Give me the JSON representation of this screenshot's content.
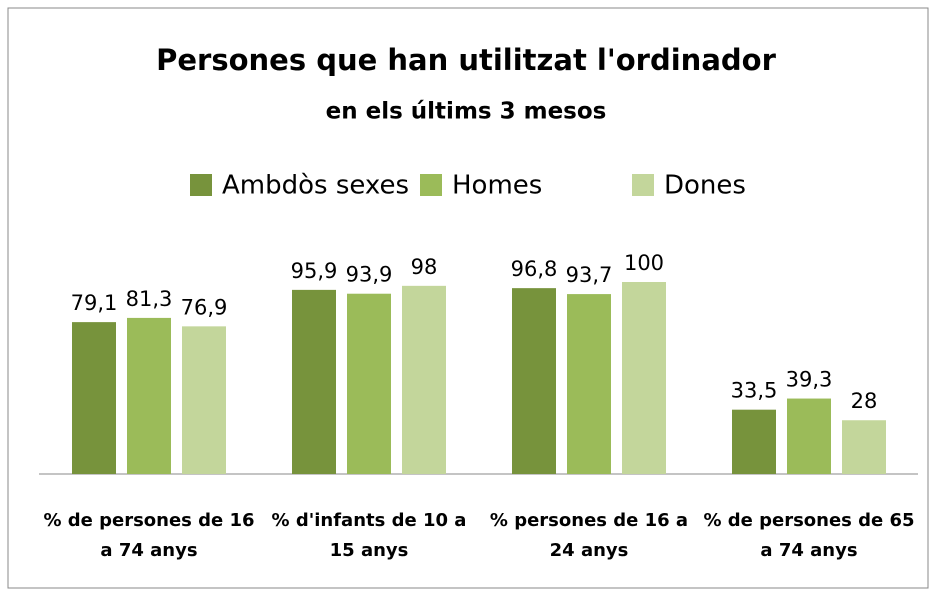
{
  "chart_data": {
    "type": "bar",
    "title": "Persones que han utilitzat l'ordinador",
    "subtitle": "en els últims 3 mesos",
    "categories": [
      "% de persones de 16 a 74 anys",
      "% d'infants de 10 a 15 anys",
      "% persones de 16 a 24 anys",
      "% de persones de 65 a 74 anys"
    ],
    "series": [
      {
        "name": "Ambdòs sexes",
        "color": "#77933c",
        "values": [
          79.1,
          95.9,
          96.8,
          33.5
        ],
        "value_labels": [
          "79,1",
          "95,9",
          "96,8",
          "33,5"
        ]
      },
      {
        "name": "Homes",
        "color": "#9bbb59",
        "values": [
          81.3,
          93.9,
          93.7,
          39.3
        ],
        "value_labels": [
          "81,3",
          "93,9",
          "93,7",
          "39,3"
        ]
      },
      {
        "name": "Dones",
        "color": "#c3d69b",
        "values": [
          76.9,
          98,
          100,
          28
        ],
        "value_labels": [
          "76,9",
          "98",
          "100",
          "28"
        ]
      }
    ],
    "ylim": [
      0,
      100
    ],
    "legend": "top"
  }
}
